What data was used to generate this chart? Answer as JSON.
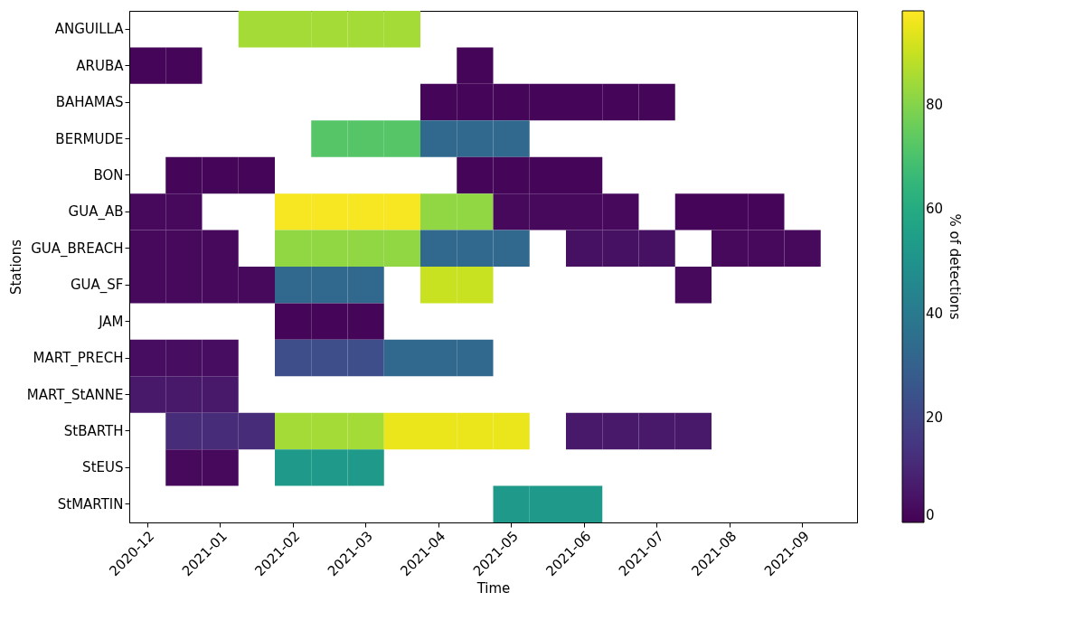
{
  "chart_data": {
    "type": "heatmap",
    "xlabel": "Time",
    "ylabel": "Stations",
    "clabel": "% of detections",
    "categories": [
      "2020-12",
      null,
      "2021-01",
      null,
      "2021-02",
      null,
      "2021-03",
      null,
      "2021-04",
      null,
      "2021-05",
      null,
      "2021-06",
      null,
      "2021-07",
      null,
      "2021-08",
      null,
      "2021-09",
      null
    ],
    "y_categories": [
      "ANGUILLA",
      "ARUBA",
      "BAHAMAS",
      "BERMUDE",
      "BON",
      "GUA_AB",
      "GUA_BREACH",
      "GUA_SF",
      "JAM",
      "MART_PRECH",
      "MART_StANNE",
      "StBARTH",
      "StEUS",
      "StMARTIN"
    ],
    "cells": [
      [
        null,
        null,
        null,
        85,
        85,
        85,
        85,
        85,
        null,
        null,
        null,
        null,
        null,
        null,
        null,
        null,
        null,
        null,
        null,
        null
      ],
      [
        1,
        1,
        null,
        null,
        null,
        null,
        null,
        null,
        null,
        1,
        null,
        null,
        null,
        null,
        null,
        null,
        null,
        null,
        null,
        null
      ],
      [
        null,
        null,
        null,
        null,
        null,
        null,
        null,
        null,
        1,
        1,
        1,
        1,
        1,
        1,
        1,
        null,
        null,
        null,
        null,
        null
      ],
      [
        null,
        null,
        null,
        null,
        null,
        72,
        72,
        72,
        33,
        33,
        33,
        null,
        null,
        null,
        null,
        null,
        null,
        null,
        null,
        null
      ],
      [
        null,
        1,
        1,
        1,
        null,
        null,
        null,
        null,
        null,
        1,
        1,
        1,
        1,
        null,
        null,
        null,
        null,
        null,
        null,
        null
      ],
      [
        2,
        2,
        null,
        null,
        97,
        97,
        97,
        97,
        82,
        82,
        2,
        2,
        2,
        2,
        null,
        1,
        1,
        1,
        null,
        null
      ],
      [
        2,
        2,
        2,
        null,
        82,
        82,
        82,
        82,
        33,
        33,
        33,
        null,
        4,
        4,
        4,
        null,
        2,
        2,
        2,
        null
      ],
      [
        2,
        2,
        2,
        2,
        33,
        33,
        33,
        null,
        90,
        90,
        null,
        null,
        null,
        null,
        null,
        2,
        null,
        null,
        null,
        null
      ],
      [
        null,
        null,
        null,
        null,
        1,
        1,
        1,
        null,
        null,
        null,
        null,
        null,
        null,
        null,
        null,
        null,
        null,
        null,
        null,
        null
      ],
      [
        3,
        3,
        3,
        null,
        23,
        23,
        23,
        33,
        33,
        33,
        null,
        null,
        null,
        null,
        null,
        null,
        null,
        null,
        null,
        null
      ],
      [
        6,
        6,
        6,
        null,
        null,
        null,
        null,
        null,
        null,
        null,
        null,
        null,
        null,
        null,
        null,
        null,
        null,
        null,
        null,
        null
      ],
      [
        null,
        12,
        12,
        12,
        85,
        85,
        85,
        95,
        95,
        95,
        95,
        null,
        6,
        6,
        6,
        6,
        null,
        null,
        null,
        null
      ],
      [
        null,
        2,
        2,
        null,
        53,
        53,
        53,
        null,
        null,
        null,
        null,
        null,
        null,
        null,
        null,
        null,
        null,
        null,
        null,
        null
      ],
      [
        null,
        null,
        null,
        null,
        null,
        null,
        null,
        null,
        null,
        null,
        53,
        53,
        53,
        null,
        null,
        null,
        null,
        null,
        null,
        null
      ]
    ],
    "clim": [
      0,
      98
    ],
    "cticks": [
      0,
      20,
      40,
      60,
      80
    ]
  }
}
